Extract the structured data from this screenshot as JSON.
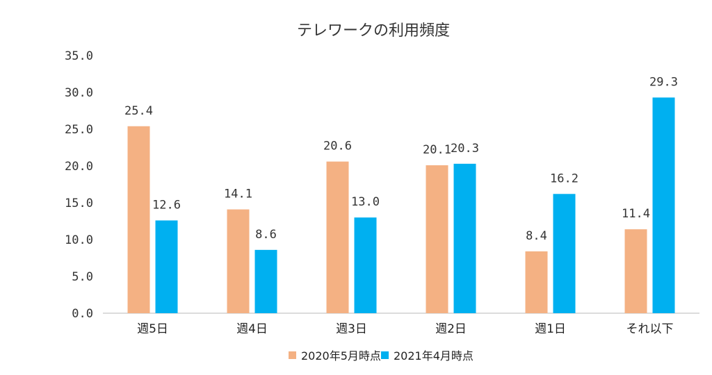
{
  "chart_data": {
    "type": "bar",
    "title": "テレワークの利用頻度",
    "categories": [
      "週5日",
      "週4日",
      "週3日",
      "週2日",
      "週1日",
      "それ以下"
    ],
    "series": [
      {
        "name": "2020年5月時点",
        "values": [
          25.4,
          14.1,
          20.6,
          20.1,
          8.4,
          11.4
        ]
      },
      {
        "name": "2021年4月時点",
        "values": [
          12.6,
          8.6,
          13.0,
          20.3,
          16.2,
          29.3
        ]
      }
    ],
    "yticks": [
      "0.0",
      "5.0",
      "10.0",
      "15.0",
      "20.0",
      "25.0",
      "30.0",
      "35.0"
    ],
    "ylim": [
      0,
      35
    ],
    "grid": false,
    "legend_position": "bottom",
    "colors": [
      "#F4B183",
      "#00B0F0"
    ]
  }
}
